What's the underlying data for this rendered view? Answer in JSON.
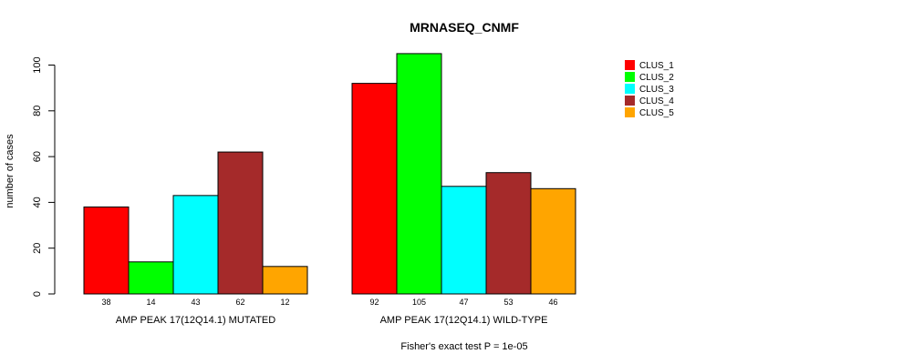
{
  "chart_data": {
    "type": "bar",
    "title": "MRNASEQ_CNMF",
    "ylabel": "number of cases",
    "ylim": [
      0,
      105
    ],
    "yticks": [
      0,
      20,
      40,
      60,
      80,
      100
    ],
    "groups": [
      "AMP PEAK 17(12Q14.1) MUTATED",
      "AMP PEAK 17(12Q14.1) WILD-TYPE"
    ],
    "series": [
      {
        "name": "CLUS_1",
        "color": "#ff0000",
        "values": [
          38,
          92
        ]
      },
      {
        "name": "CLUS_2",
        "color": "#00ff00",
        "values": [
          14,
          105
        ]
      },
      {
        "name": "CLUS_3",
        "color": "#00ffff",
        "values": [
          43,
          47
        ]
      },
      {
        "name": "CLUS_4",
        "color": "#a52a2a",
        "values": [
          62,
          53
        ]
      },
      {
        "name": "CLUS_5",
        "color": "#ffa500",
        "values": [
          12,
          46
        ]
      }
    ],
    "legend_position": "top-right",
    "grid": false,
    "footnote": "Fisher's exact test P = 1e-05"
  }
}
